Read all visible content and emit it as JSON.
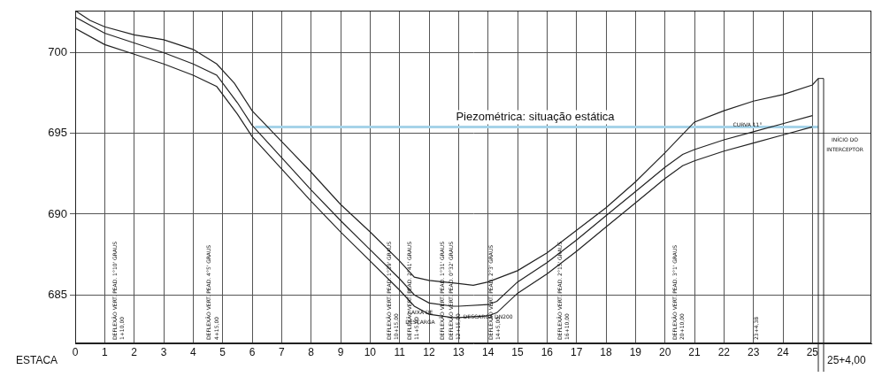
{
  "chart_data": {
    "type": "line",
    "x_label": "ESTACA",
    "xlim": [
      0,
      27
    ],
    "xticks": [
      0,
      1,
      2,
      3,
      4,
      5,
      6,
      7,
      8,
      9,
      10,
      11,
      12,
      13,
      14,
      15,
      16,
      17,
      18,
      19,
      20,
      21,
      22,
      23,
      24,
      25
    ],
    "ylim": [
      682,
      702.6
    ],
    "yticks": [
      685,
      690,
      695,
      700
    ],
    "grid": true,
    "series": [
      {
        "color": "#222222",
        "x": [
          0,
          0.5,
          1,
          2,
          3,
          4,
          4.8,
          5.4,
          6,
          7,
          8,
          9,
          10,
          11,
          11.5,
          12,
          13,
          13.5,
          14,
          15,
          16,
          17,
          18,
          19,
          20,
          21,
          22,
          23,
          24,
          25,
          25.2
        ],
        "values": [
          702.6,
          702.0,
          701.6,
          701.1,
          700.8,
          700.2,
          699.3,
          698.1,
          696.4,
          694.5,
          692.6,
          690.6,
          688.9,
          687.1,
          686.1,
          685.9,
          685.7,
          685.6,
          685.8,
          686.5,
          687.6,
          689.0,
          690.4,
          692.0,
          693.8,
          695.7,
          696.4,
          697.0,
          697.4,
          698.0,
          698.4
        ]
      },
      {
        "color": "#222222",
        "x": [
          0,
          1,
          2,
          3,
          4,
          4.8,
          5.5,
          6,
          7,
          8,
          9,
          10,
          11,
          11.5,
          12,
          12.8,
          13,
          14,
          14.3,
          15,
          16,
          17,
          18,
          19,
          20,
          20.6,
          21,
          22,
          23,
          24,
          25
        ],
        "values": [
          702.2,
          701.2,
          700.6,
          700.0,
          699.3,
          698.6,
          696.9,
          695.5,
          693.5,
          691.5,
          689.6,
          687.8,
          686.0,
          685.0,
          684.5,
          684.3,
          684.3,
          684.4,
          684.6,
          685.8,
          687.0,
          688.4,
          689.9,
          691.4,
          692.9,
          693.7,
          694.0,
          694.6,
          695.1,
          695.6,
          696.1
        ]
      },
      {
        "color": "#222222",
        "x": [
          0,
          1,
          2,
          3,
          4,
          4.8,
          5.5,
          6,
          7,
          8,
          9,
          10,
          11,
          11.5,
          12,
          12.8,
          13,
          14,
          14.3,
          15,
          16,
          17,
          18,
          19,
          20,
          20.6,
          21,
          22,
          23,
          24,
          25
        ],
        "values": [
          701.5,
          700.5,
          699.9,
          699.3,
          698.6,
          697.9,
          696.2,
          694.8,
          692.8,
          690.8,
          688.9,
          687.1,
          685.3,
          684.3,
          683.8,
          683.6,
          683.6,
          683.7,
          683.9,
          685.1,
          686.3,
          687.7,
          689.2,
          690.7,
          692.2,
          693.0,
          693.3,
          693.9,
          694.4,
          694.9,
          695.4
        ]
      },
      {
        "color": "#a6d3e8",
        "x": [
          6.1,
          25.2
        ],
        "values": [
          695.4,
          695.4
        ]
      }
    ],
    "end_station": {
      "x": 25.2,
      "y": 698.4,
      "label": "25+4,00"
    },
    "annotations": [
      {
        "x": 15.6,
        "y": 696.0,
        "text": "Piezométrica: situação estática"
      },
      {
        "x": 22.8,
        "y": 695.5,
        "text": "CURVA 11°"
      },
      {
        "x": 26.1,
        "y": 694.6,
        "text": "INÍCIO DO"
      },
      {
        "x": 26.1,
        "y": 694.0,
        "text": "INTERCEPTOR"
      },
      {
        "x": 11.7,
        "y": 683.9,
        "text": "CAIXA DE"
      },
      {
        "x": 11.7,
        "y": 683.3,
        "text": "DESCARGA"
      },
      {
        "x": 14.0,
        "y": 683.6,
        "text": "DESCARGA DN200"
      }
    ],
    "vertical_annotations": [
      {
        "x": 1.35,
        "text": "DEFLEXÃO VERT. PEAD. 1°10' GRAUS"
      },
      {
        "x": 1.6,
        "text": "1+10,00"
      },
      {
        "x": 4.55,
        "text": "DEFLEXÃO VERT. PEAD. 4°5' GRAUS"
      },
      {
        "x": 4.8,
        "text": "4+15,00"
      },
      {
        "x": 10.65,
        "text": "DEFLEXÃO VERT. PEAD. 1°39' GRAUS"
      },
      {
        "x": 10.9,
        "text": "10+15,00"
      },
      {
        "x": 11.35,
        "text": "DEFLEXÃO VERT. PEAD. 2°41' GRAUS"
      },
      {
        "x": 11.6,
        "text": "11+5,00"
      },
      {
        "x": 12.45,
        "text": "DEFLEXÃO VERT. PEAD. 1°31' GRAUS"
      },
      {
        "x": 12.75,
        "text": "DEFLEXÃO VERT. PEAD. 0°32' GRAUS"
      },
      {
        "x": 13.0,
        "text": "12+15,00"
      },
      {
        "x": 14.1,
        "text": "DEFLEXÃO VERT. PEAD. 2°3' GRAUS"
      },
      {
        "x": 14.35,
        "text": "14+5,00"
      },
      {
        "x": 16.45,
        "text": "DEFLEXÃO VERT. PEAD. 2°15' GRAUS"
      },
      {
        "x": 16.7,
        "text": "16+10,00"
      },
      {
        "x": 20.35,
        "text": "DEFLEXÃO VERT. PEAD. 3°1' GRAUS"
      },
      {
        "x": 20.6,
        "text": "20+10,00"
      },
      {
        "x": 23.1,
        "text": "23+4,38"
      }
    ]
  }
}
